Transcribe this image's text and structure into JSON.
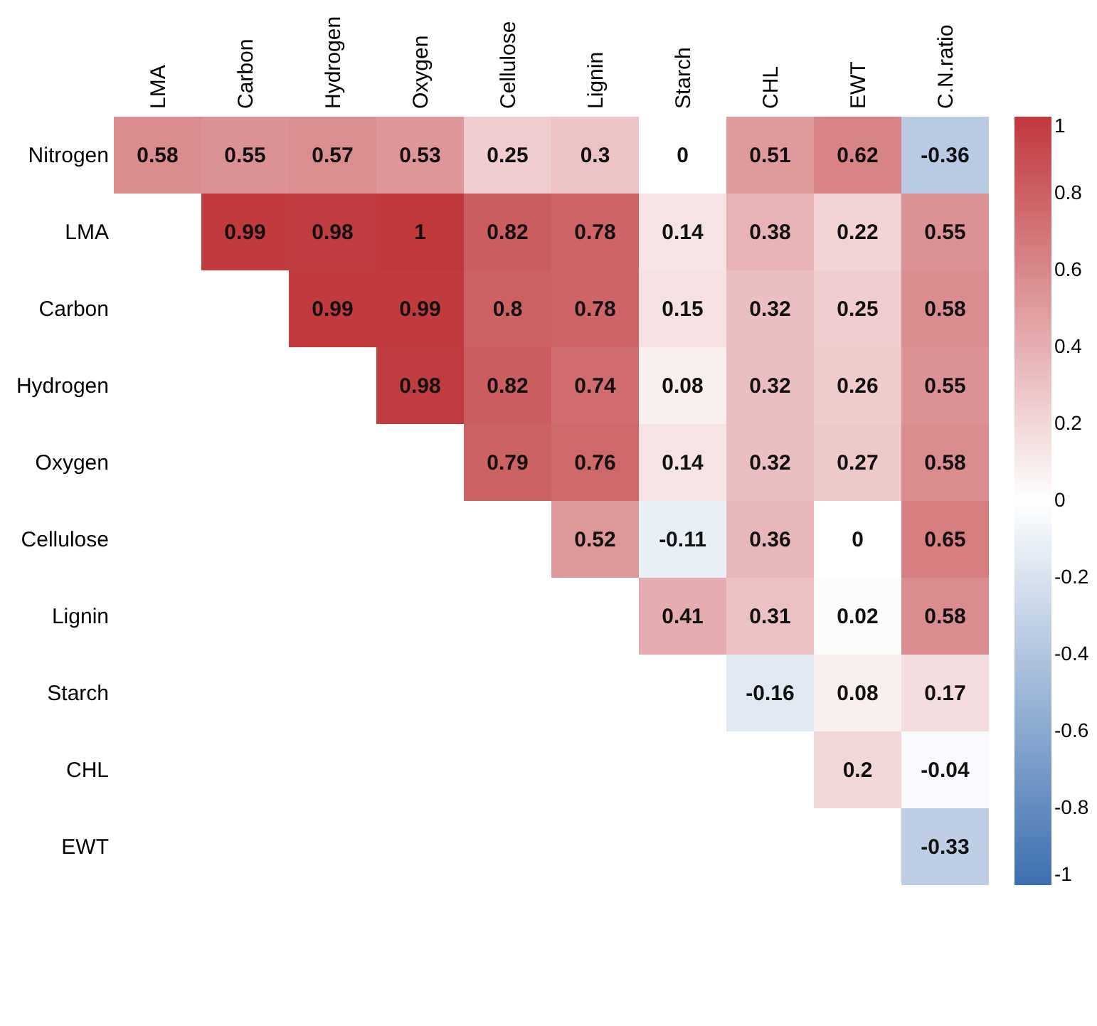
{
  "chart_data": {
    "type": "heatmap",
    "categories": [
      "LMA",
      "Carbon",
      "Hydrogen",
      "Oxygen",
      "Cellulose",
      "Lignin",
      "Starch",
      "CHL",
      "EWT",
      "C.N.ratio"
    ],
    "y_categories": [
      "Nitrogen",
      "LMA",
      "Carbon",
      "Hydrogen",
      "Oxygen",
      "Cellulose",
      "Lignin",
      "Starch",
      "CHL",
      "EWT"
    ],
    "cells": [
      [
        0.58,
        0.55,
        0.57,
        0.53,
        0.25,
        0.3,
        0,
        0.51,
        0.62,
        -0.36
      ],
      [
        null,
        0.99,
        0.98,
        1,
        0.82,
        0.78,
        0.14,
        0.38,
        0.22,
        0.55
      ],
      [
        null,
        null,
        0.99,
        0.99,
        0.8,
        0.78,
        0.15,
        0.32,
        0.25,
        0.58
      ],
      [
        null,
        null,
        null,
        0.98,
        0.82,
        0.74,
        0.08,
        0.32,
        0.26,
        0.55
      ],
      [
        null,
        null,
        null,
        null,
        0.79,
        0.76,
        0.14,
        0.32,
        0.27,
        0.58
      ],
      [
        null,
        null,
        null,
        null,
        null,
        0.52,
        -0.11,
        0.36,
        0,
        0.65
      ],
      [
        null,
        null,
        null,
        null,
        null,
        null,
        0.41,
        0.31,
        0.02,
        0.58
      ],
      [
        null,
        null,
        null,
        null,
        null,
        null,
        null,
        -0.16,
        0.08,
        0.17
      ],
      [
        null,
        null,
        null,
        null,
        null,
        null,
        null,
        null,
        0.2,
        -0.04
      ],
      [
        null,
        null,
        null,
        null,
        null,
        null,
        null,
        null,
        null,
        -0.33
      ]
    ],
    "clim": [
      -1,
      1
    ],
    "cticks": [
      -1,
      -0.8,
      -0.6,
      -0.4,
      -0.2,
      0,
      0.2,
      0.4,
      0.6,
      0.8,
      1
    ],
    "data_labels": true
  }
}
